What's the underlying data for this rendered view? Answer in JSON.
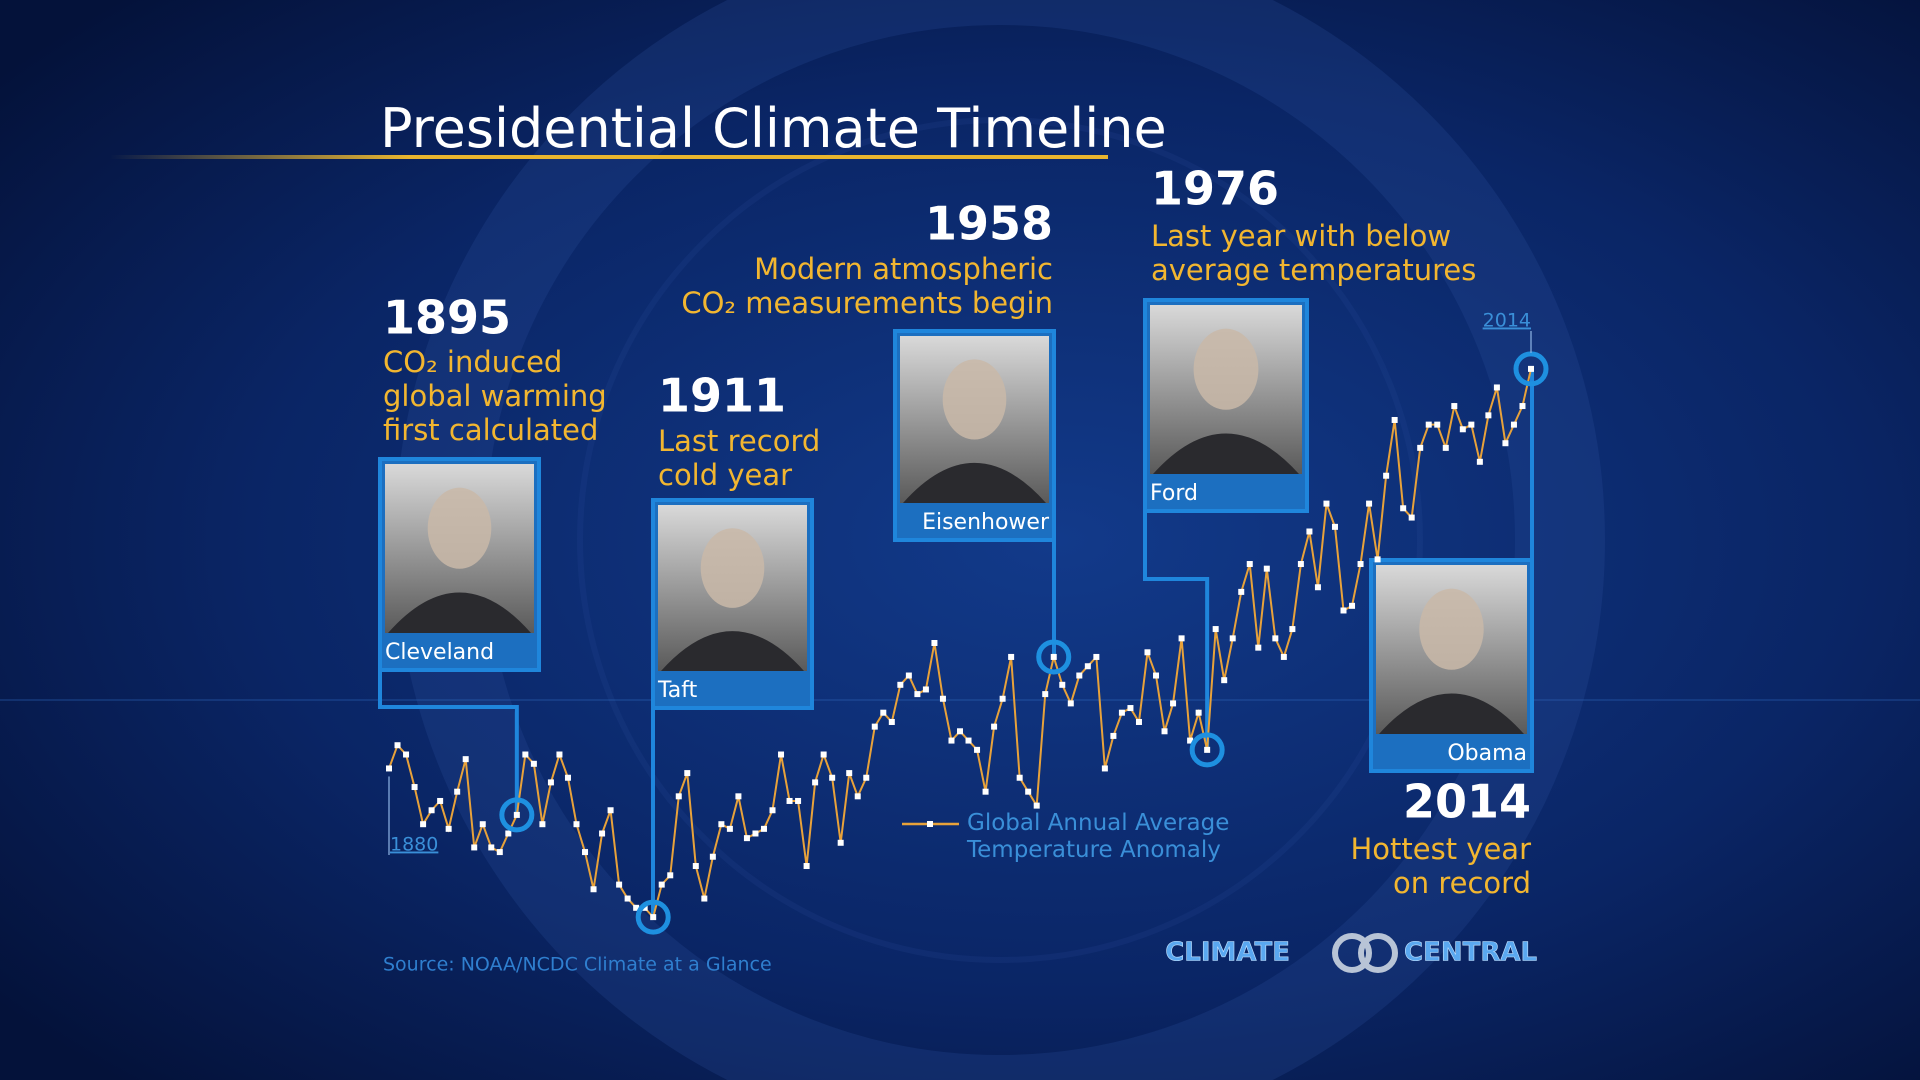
{
  "chart_data": {
    "type": "line",
    "title": "Presidential Climate Timeline",
    "x": [
      1880,
      1881,
      1882,
      1883,
      1884,
      1885,
      1886,
      1887,
      1888,
      1889,
      1890,
      1891,
      1892,
      1893,
      1894,
      1895,
      1896,
      1897,
      1898,
      1899,
      1900,
      1901,
      1902,
      1903,
      1904,
      1905,
      1906,
      1907,
      1908,
      1909,
      1910,
      1911,
      1912,
      1913,
      1914,
      1915,
      1916,
      1917,
      1918,
      1919,
      1920,
      1921,
      1922,
      1923,
      1924,
      1925,
      1926,
      1927,
      1928,
      1929,
      1930,
      1931,
      1932,
      1933,
      1934,
      1935,
      1936,
      1937,
      1938,
      1939,
      1940,
      1941,
      1942,
      1943,
      1944,
      1945,
      1946,
      1947,
      1948,
      1949,
      1950,
      1951,
      1952,
      1953,
      1954,
      1955,
      1956,
      1957,
      1958,
      1959,
      1960,
      1961,
      1962,
      1963,
      1964,
      1965,
      1966,
      1967,
      1968,
      1969,
      1970,
      1971,
      1972,
      1973,
      1974,
      1975,
      1976,
      1977,
      1978,
      1979,
      1980,
      1981,
      1982,
      1983,
      1984,
      1985,
      1986,
      1987,
      1988,
      1989,
      1990,
      1991,
      1992,
      1993,
      1994,
      1995,
      1996,
      1997,
      1998,
      1999,
      2000,
      2001,
      2002,
      2003,
      2004,
      2005,
      2006,
      2007,
      2008,
      2009,
      2010,
      2011,
      2012,
      2013,
      2014
    ],
    "series": [
      {
        "name": "Global Annual Average Temperature Anomaly",
        "color": "#e8a23a",
        "values": [
          -0.12,
          -0.07,
          -0.09,
          -0.16,
          -0.24,
          -0.21,
          -0.19,
          -0.25,
          -0.17,
          -0.1,
          -0.29,
          -0.24,
          -0.29,
          -0.3,
          -0.26,
          -0.22,
          -0.09,
          -0.11,
          -0.24,
          -0.15,
          -0.09,
          -0.14,
          -0.24,
          -0.3,
          -0.38,
          -0.26,
          -0.21,
          -0.37,
          -0.4,
          -0.42,
          -0.42,
          -0.44,
          -0.37,
          -0.35,
          -0.18,
          -0.13,
          -0.33,
          -0.4,
          -0.31,
          -0.24,
          -0.25,
          -0.18,
          -0.27,
          -0.26,
          -0.25,
          -0.21,
          -0.09,
          -0.19,
          -0.19,
          -0.33,
          -0.15,
          -0.09,
          -0.14,
          -0.28,
          -0.13,
          -0.18,
          -0.14,
          -0.03,
          0.0,
          -0.02,
          0.06,
          0.08,
          0.04,
          0.05,
          0.15,
          0.03,
          -0.06,
          -0.04,
          -0.06,
          -0.08,
          -0.17,
          -0.03,
          0.03,
          0.12,
          -0.14,
          -0.17,
          -0.2,
          0.04,
          0.12,
          0.06,
          0.02,
          0.08,
          0.1,
          0.12,
          -0.12,
          -0.05,
          0.0,
          0.01,
          -0.02,
          0.13,
          0.08,
          -0.04,
          0.02,
          0.16,
          -0.06,
          0.0,
          -0.08,
          0.18,
          0.07,
          0.16,
          0.26,
          0.32,
          0.14,
          0.31,
          0.16,
          0.12,
          0.18,
          0.32,
          0.39,
          0.27,
          0.45,
          0.4,
          0.22,
          0.23,
          0.32,
          0.45,
          0.33,
          0.51,
          0.63,
          0.44,
          0.42,
          0.57,
          0.62,
          0.62,
          0.57,
          0.66,
          0.61,
          0.62,
          0.54,
          0.64,
          0.7,
          0.58,
          0.62,
          0.66,
          0.74
        ]
      }
    ],
    "xlim": [
      1880,
      2014
    ],
    "xticks": [
      1880,
      2014
    ],
    "ylim": [
      -0.5,
      0.8
    ],
    "annotations": [
      {
        "x": 1895,
        "lines": [
          "CO₂ induced",
          "global warming",
          "first calculated"
        ],
        "name": "Cleveland"
      },
      {
        "x": 1911,
        "lines": [
          "Last record",
          "cold year"
        ],
        "name": "Taft"
      },
      {
        "x": 1958,
        "lines": [
          "Modern atmospheric",
          "CO₂ measurements begin"
        ],
        "name": "Eisenhower"
      },
      {
        "x": 1976,
        "lines": [
          "Last year with below",
          "average temperatures"
        ],
        "name": "Ford"
      },
      {
        "x": 2014,
        "lines": [
          "Hottest year",
          "on record"
        ],
        "name": "Obama"
      }
    ],
    "source": "Source: NOAA/NCDC Climate at a Glance",
    "logo": [
      "CLIMATE",
      "CENTRAL"
    ]
  }
}
